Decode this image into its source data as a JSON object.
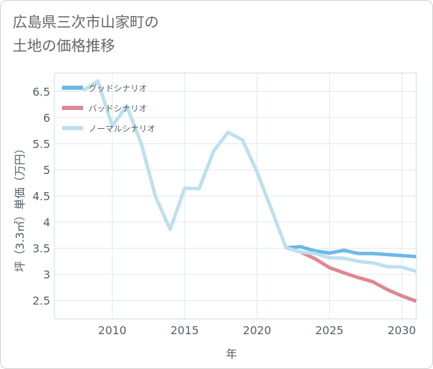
{
  "chart_data": {
    "type": "line",
    "title_lines": [
      "広島県三次市山家町の",
      "土地の価格推移"
    ],
    "xlabel": "年",
    "ylabel": "坪（3.3㎡）単価（万円）",
    "xlim": [
      2006,
      2031
    ],
    "ylim": [
      2.15,
      6.85
    ],
    "xticks": [
      2010,
      2015,
      2020,
      2025,
      2030
    ],
    "yticks": [
      2.5,
      3,
      3.5,
      4,
      4.5,
      5,
      5.5,
      6,
      6.5
    ],
    "grid": true,
    "legend_position": "top-left",
    "series": [
      {
        "name": "グッドシナリオ",
        "color": "#6db8ea",
        "x": [
          2022,
          2023,
          2024,
          2025,
          2026,
          2027,
          2028,
          2029,
          2030,
          2031
        ],
        "values": [
          3.51,
          3.53,
          3.45,
          3.41,
          3.46,
          3.4,
          3.4,
          3.38,
          3.36,
          3.34
        ]
      },
      {
        "name": "バッドシナリオ",
        "color": "#dd8890",
        "x": [
          2022,
          2023,
          2024,
          2025,
          2026,
          2027,
          2028,
          2029,
          2030,
          2031
        ],
        "values": [
          3.51,
          3.43,
          3.3,
          3.13,
          3.03,
          2.94,
          2.86,
          2.71,
          2.59,
          2.49
        ]
      },
      {
        "name": "ノーマルシナリオ",
        "color": "#bde0ee",
        "x": [
          2008,
          2009,
          2010,
          2011,
          2012,
          2013,
          2014,
          2015,
          2016,
          2017,
          2018,
          2019,
          2020,
          2021,
          2022,
          2023,
          2024,
          2025,
          2026,
          2027,
          2028,
          2029,
          2030,
          2031
        ],
        "values": [
          6.52,
          6.7,
          5.84,
          6.22,
          5.5,
          4.48,
          3.86,
          4.65,
          4.64,
          5.36,
          5.72,
          5.57,
          4.96,
          4.24,
          3.51,
          3.43,
          3.4,
          3.32,
          3.31,
          3.25,
          3.22,
          3.15,
          3.14,
          3.06
        ]
      }
    ]
  }
}
